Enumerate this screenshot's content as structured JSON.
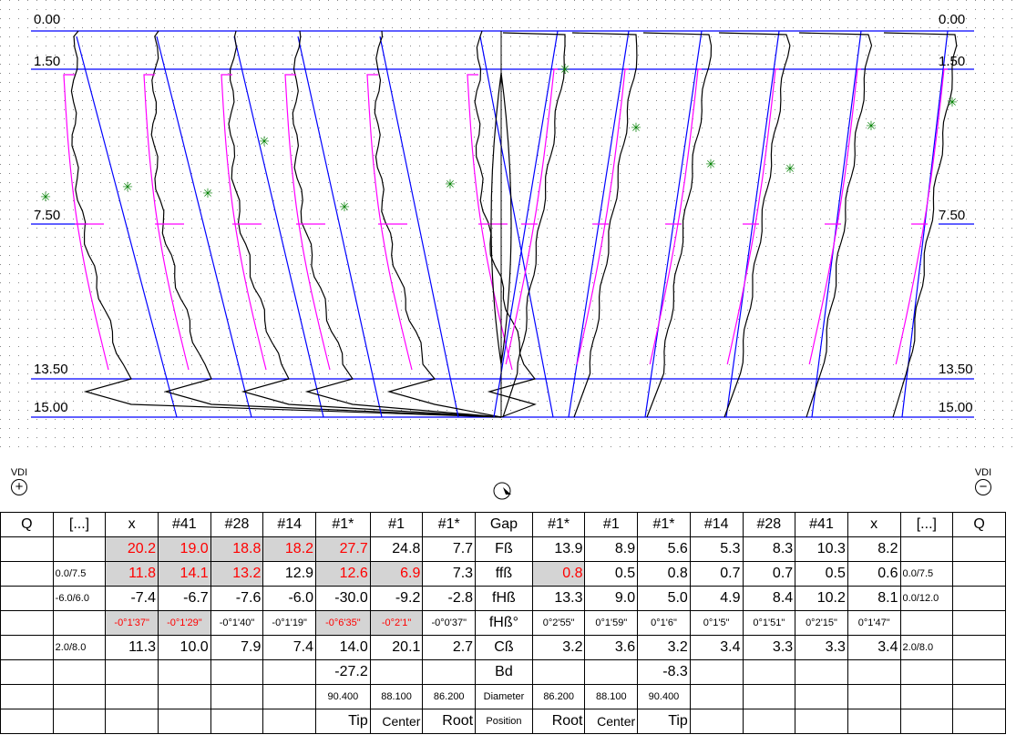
{
  "colors": {
    "profile": "#000000",
    "fit": "#ff00ff",
    "tangent": "#0000ff",
    "marker": "#008000",
    "highlight": "#d4d4d4",
    "deviation": "#ff0000"
  },
  "plot": {
    "axis_labels_left": [
      "0.00",
      "1.50",
      "7.50",
      "13.50",
      "15.00"
    ],
    "axis_labels_right": [
      "0.00",
      "1.50",
      "7.50",
      "13.50",
      "15.00"
    ],
    "vdi_left": {
      "label": "VDI",
      "symbol": "+",
      "icon": "zoom-in-icon"
    },
    "vdi_right": {
      "label": "VDI",
      "symbol": "−",
      "icon": "zoom-out-icon"
    },
    "center_icon": "rotate-icon"
  },
  "table": {
    "header": [
      "Q",
      "[...]",
      "x",
      "#41",
      "#28",
      "#14",
      "#1*",
      "#1",
      "#1*",
      "Gap",
      "#1*",
      "#1",
      "#1*",
      "#14",
      "#28",
      "#41",
      "x",
      "[...]",
      "Q"
    ],
    "rows": [
      [
        "",
        "",
        "20.2",
        "19.0",
        "18.8",
        "18.2",
        "27.7",
        "24.8",
        "7.7",
        "Fß",
        "13.9",
        "8.9",
        "5.6",
        "5.3",
        "8.3",
        "10.3",
        "8.2",
        "",
        ""
      ],
      [
        "",
        "0.0/7.5",
        "11.8",
        "14.1",
        "13.2",
        "12.9",
        "12.6",
        "6.9",
        "7.3",
        "ffß",
        "0.8",
        "0.5",
        "0.8",
        "0.7",
        "0.7",
        "0.5",
        "0.6",
        "0.0/7.5",
        ""
      ],
      [
        "",
        "-6.0/6.0",
        "-7.4",
        "-6.7",
        "-7.6",
        "-6.0",
        "-30.0",
        "-9.2",
        "-2.8",
        "fHß",
        "13.3",
        "9.0",
        "5.0",
        "4.9",
        "8.4",
        "10.2",
        "8.1",
        "0.0/12.0",
        ""
      ],
      [
        "",
        "",
        "-0°1'37\"",
        "-0°1'29\"",
        "-0°1'40\"",
        "-0°1'19\"",
        "-0°6'35\"",
        "-0°2'1\"",
        "-0°0'37\"",
        "fHß°",
        "0°2'55\"",
        "0°1'59\"",
        "0°1'6\"",
        "0°1'5\"",
        "0°1'51\"",
        "0°2'15\"",
        "0°1'47\"",
        "",
        ""
      ],
      [
        "",
        "2.0/8.0",
        "11.3",
        "10.0",
        "7.9",
        "7.4",
        "14.0",
        "20.1",
        "2.7",
        "Cß",
        "3.2",
        "3.6",
        "3.2",
        "3.4",
        "3.3",
        "3.3",
        "3.4",
        "2.0/8.0",
        ""
      ],
      [
        "",
        "",
        "",
        "",
        "",
        "",
        "-27.2",
        "",
        "",
        "Bd",
        "",
        "",
        "-8.3",
        "",
        "",
        "",
        "",
        "",
        ""
      ],
      [
        "",
        "",
        "",
        "",
        "",
        "",
        "90.400",
        "88.100",
        "86.200",
        "Diameter",
        "86.200",
        "88.100",
        "90.400",
        "",
        "",
        "",
        "",
        "",
        ""
      ],
      [
        "",
        "",
        "",
        "",
        "",
        "",
        "Tip",
        "Center",
        "Root",
        "Position",
        "Root",
        "Center",
        "Tip",
        "",
        "",
        "",
        "",
        "",
        ""
      ]
    ],
    "red_cells": [
      [
        1,
        2
      ],
      [
        1,
        3
      ],
      [
        1,
        4
      ],
      [
        1,
        5
      ],
      [
        1,
        6
      ],
      [
        2,
        2
      ],
      [
        2,
        3
      ],
      [
        2,
        4
      ],
      [
        2,
        6
      ],
      [
        2,
        7
      ],
      [
        2,
        10
      ],
      [
        4,
        2
      ],
      [
        4,
        3
      ],
      [
        4,
        6
      ],
      [
        4,
        7
      ]
    ],
    "gray_cells": [
      [
        1,
        2
      ],
      [
        1,
        3
      ],
      [
        1,
        4
      ],
      [
        1,
        5
      ],
      [
        1,
        6
      ],
      [
        2,
        2
      ],
      [
        2,
        3
      ],
      [
        2,
        4
      ],
      [
        2,
        6
      ],
      [
        2,
        7
      ],
      [
        2,
        10
      ],
      [
        4,
        2
      ],
      [
        4,
        3
      ],
      [
        4,
        6
      ],
      [
        4,
        7
      ]
    ]
  }
}
